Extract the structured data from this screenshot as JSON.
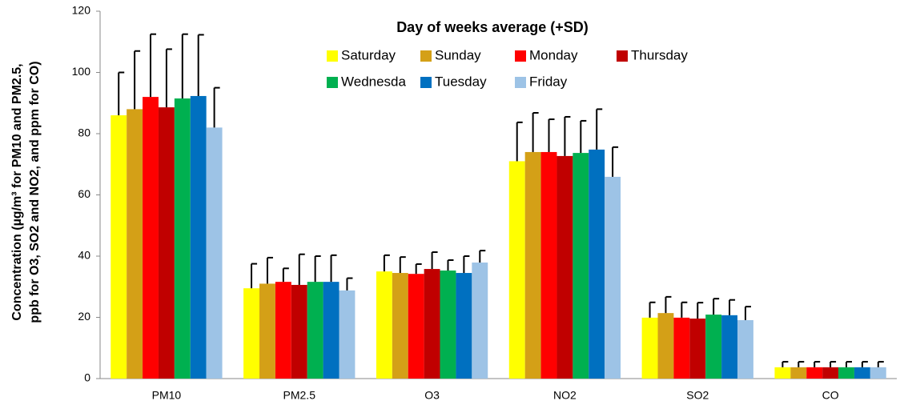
{
  "chart_data": {
    "type": "bar",
    "title": "Day of weeks average (+SD)",
    "y_label": [
      "Concentration (µg/m³ for PM10 and PM2.5,",
      "ppb for O3, SO2 and NO2, and ppm for CO)"
    ],
    "categories": [
      "PM10",
      "PM2.5",
      "O3",
      "NO2",
      "SO2",
      "CO"
    ],
    "series": [
      {
        "name": "Saturday",
        "color": "#ffff00",
        "values": [
          86,
          29.5,
          35,
          71,
          19.9,
          3.7
        ],
        "errors": [
          14,
          8,
          5.3,
          12.7,
          5,
          1.8
        ]
      },
      {
        "name": "Sunday",
        "color": "#d4a017",
        "values": [
          88,
          31,
          34.5,
          74,
          21.4,
          3.7
        ],
        "errors": [
          19,
          8.5,
          5.2,
          12.8,
          5.3,
          1.8
        ]
      },
      {
        "name": "Monday",
        "color": "#ff0000",
        "values": [
          92,
          31.6,
          34.2,
          74,
          19.9,
          3.7
        ],
        "errors": [
          20.5,
          4.4,
          3.2,
          10.7,
          5,
          1.8
        ]
      },
      {
        "name": "Thursday",
        "color": "#c00000",
        "values": [
          88.6,
          30.6,
          35.8,
          72.7,
          19.6,
          3.7
        ],
        "errors": [
          19,
          10,
          5.5,
          12.8,
          5.2,
          1.8
        ]
      },
      {
        "name": "Wednesda",
        "color": "#00b050",
        "values": [
          91.5,
          31.6,
          35.3,
          73.7,
          20.9,
          3.7
        ],
        "errors": [
          21,
          8.4,
          3.4,
          10.5,
          5.2,
          1.8
        ]
      },
      {
        "name": "Tuesday",
        "color": "#0070c0",
        "values": [
          92.3,
          31.6,
          34.5,
          74.8,
          20.7,
          3.7
        ],
        "errors": [
          20,
          8.7,
          5.5,
          13.2,
          5,
          1.8
        ]
      },
      {
        "name": "Friday",
        "color": "#9dc3e6",
        "values": [
          82,
          28.8,
          37.9,
          65.9,
          19.1,
          3.7
        ],
        "errors": [
          13,
          4,
          3.9,
          9.7,
          4.4,
          1.8
        ]
      }
    ],
    "ylim": [
      0,
      120
    ],
    "yticks": [
      0,
      20,
      40,
      60,
      80,
      100,
      120
    ],
    "grid": false
  }
}
